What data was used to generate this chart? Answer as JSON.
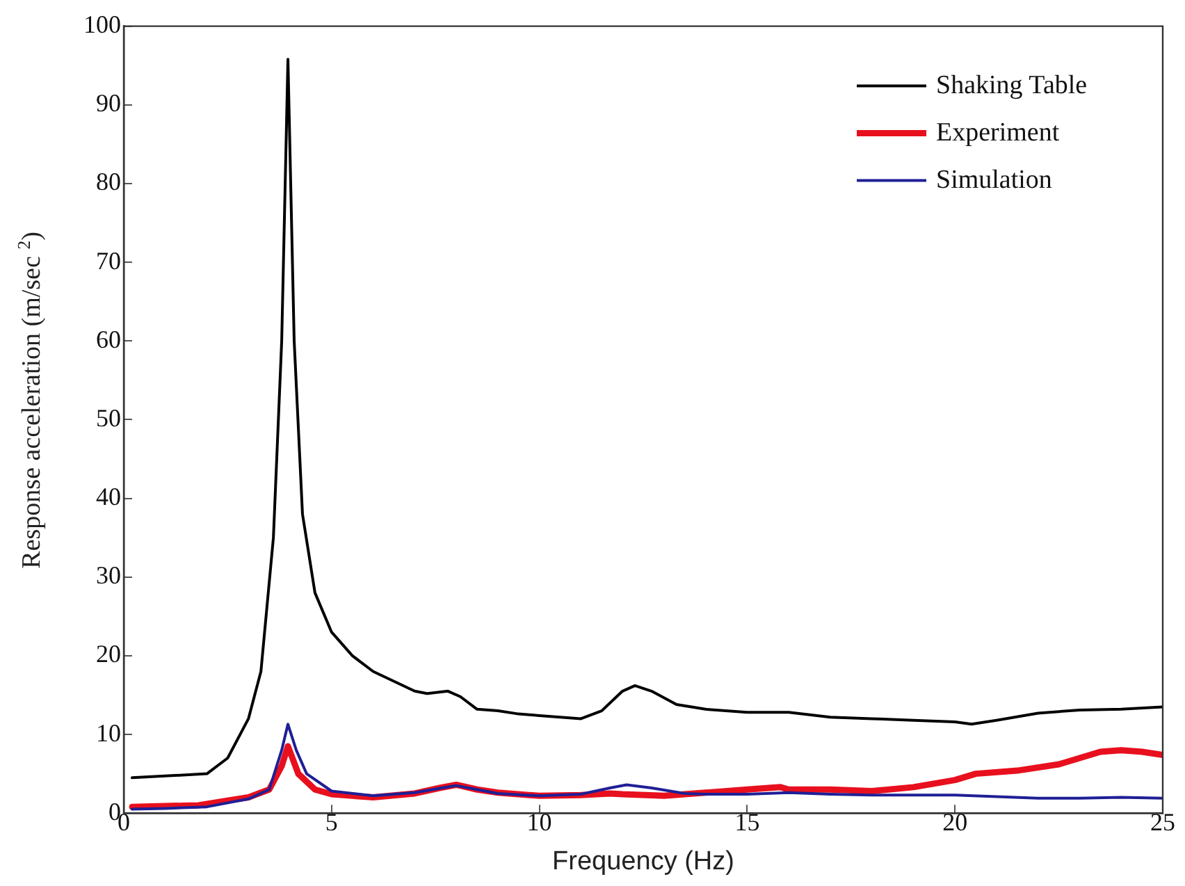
{
  "chart_data": {
    "type": "line",
    "xlabel": "Frequency (Hz)",
    "ylabel": "Response acceleration (m/sec $^{2}$)",
    "xlim": [
      0,
      25
    ],
    "ylim": [
      0,
      100
    ],
    "xticks": [
      0,
      5,
      10,
      15,
      20,
      25
    ],
    "yticks": [
      0,
      10,
      20,
      30,
      40,
      50,
      60,
      70,
      80,
      90,
      100
    ],
    "grid": false,
    "legend": "top right",
    "marker": "none",
    "line_style": "solid",
    "series": [
      {
        "name": "Shaking Table",
        "color": "#000000",
        "x": [
          0.2,
          2,
          2.5,
          3,
          3.3,
          3.6,
          3.8,
          3.95,
          4.1,
          4.3,
          4.6,
          5,
          5.5,
          6,
          7,
          7.3,
          7.8,
          8.1,
          8.5,
          9,
          9.5,
          10,
          11,
          11.5,
          12,
          12.3,
          12.7,
          13.3,
          14,
          15,
          16,
          17,
          18,
          19,
          20,
          20.4,
          21,
          22,
          23,
          24,
          25
        ],
        "values": [
          4.5,
          5,
          7,
          12,
          18,
          35,
          60,
          95.8,
          60,
          38,
          28,
          23,
          20,
          18,
          15.5,
          15.2,
          15.5,
          14.8,
          13.2,
          13,
          12.6,
          12.4,
          12,
          13,
          15.5,
          16.2,
          15.5,
          13.8,
          13.2,
          12.8,
          12.8,
          12.2,
          12,
          11.8,
          11.6,
          11.3,
          11.8,
          12.7,
          13.1,
          13.2,
          13.5
        ]
      },
      {
        "name": "Experiment",
        "color": "#e8101e",
        "x": [
          0.2,
          1,
          1.8,
          2.5,
          3,
          3.5,
          3.8,
          3.95,
          4.2,
          4.6,
          5,
          6,
          7,
          7.6,
          8,
          8.5,
          9,
          10,
          11,
          11.7,
          12,
          13,
          14,
          15,
          15.8,
          16,
          17,
          18,
          19,
          20,
          20.5,
          21.5,
          22.5,
          23.5,
          24,
          24.5,
          25
        ],
        "values": [
          0.8,
          0.9,
          1,
          1.6,
          2,
          3,
          6,
          8.5,
          5,
          3,
          2.4,
          2,
          2.5,
          3.2,
          3.6,
          3,
          2.6,
          2.2,
          2.3,
          2.5,
          2.4,
          2.2,
          2.6,
          3,
          3.3,
          3,
          3,
          2.8,
          3.3,
          4.2,
          5,
          5.4,
          6.2,
          7.8,
          8,
          7.8,
          7.4
        ]
      },
      {
        "name": "Simulation",
        "color": "#1f1f96",
        "x": [
          0.2,
          1,
          2,
          3,
          3.5,
          3.8,
          3.95,
          4.15,
          4.4,
          5,
          6,
          7,
          8,
          8.5,
          9,
          10,
          11,
          11.7,
          12.1,
          12.7,
          13.5,
          14,
          15,
          16,
          17,
          18,
          19,
          20,
          21,
          22,
          23,
          24,
          25
        ],
        "values": [
          0.5,
          0.6,
          0.8,
          1.8,
          3,
          8,
          11.3,
          8,
          5,
          2.8,
          2.2,
          2.6,
          3.5,
          3,
          2.5,
          2.2,
          2.4,
          3.2,
          3.6,
          3.2,
          2.5,
          2.4,
          2.4,
          2.6,
          2.4,
          2.3,
          2.3,
          2.3,
          2.1,
          1.9,
          1.9,
          2,
          1.9
        ]
      }
    ]
  }
}
